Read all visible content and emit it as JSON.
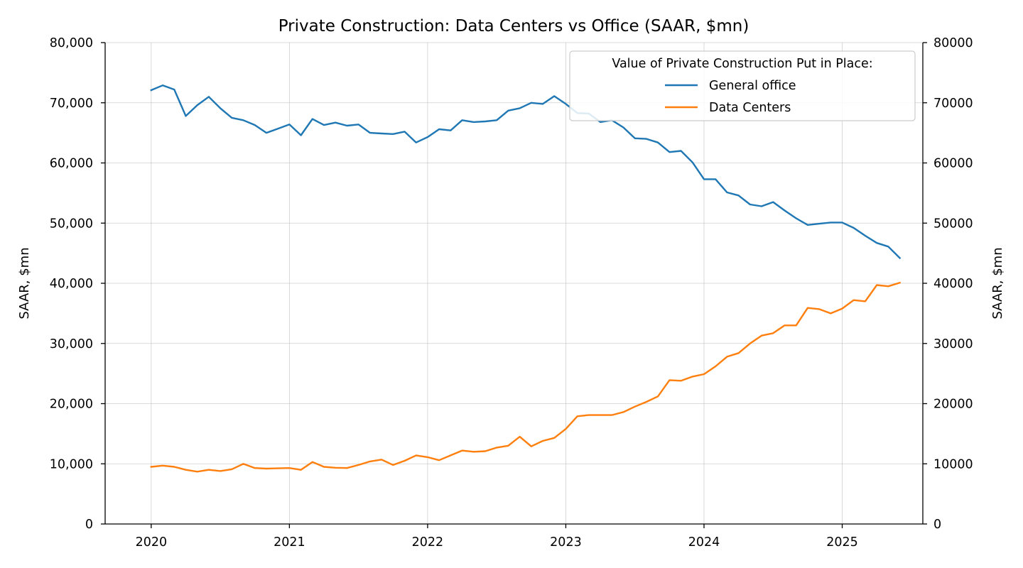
{
  "chart_data": {
    "type": "line",
    "title": "Private Construction: Data Centers vs Office (SAAR, $mn)",
    "ylabel_left": "SAAR, $mn",
    "ylabel_right": "SAAR, $mn",
    "xlabel": "",
    "ylim": [
      0,
      80000
    ],
    "xlim": [
      "2019-09",
      "2025-08"
    ],
    "yticks_left": [
      "0",
      "10,000",
      "20,000",
      "30,000",
      "40,000",
      "50,000",
      "60,000",
      "70,000",
      "80,000"
    ],
    "yticks_right": [
      "0",
      "10000",
      "20000",
      "30000",
      "40000",
      "50000",
      "60000",
      "70000",
      "80000"
    ],
    "xticks": [
      "2020",
      "2021",
      "2022",
      "2023",
      "2024",
      "2025"
    ],
    "grid": true,
    "legend": {
      "title": "Value of Private Construction Put in Place:",
      "placement": "upper right"
    },
    "x": [
      "2020-01",
      "2020-02",
      "2020-03",
      "2020-04",
      "2020-05",
      "2020-06",
      "2020-07",
      "2020-08",
      "2020-09",
      "2020-10",
      "2020-11",
      "2020-12",
      "2021-01",
      "2021-02",
      "2021-03",
      "2021-04",
      "2021-05",
      "2021-06",
      "2021-07",
      "2021-08",
      "2021-09",
      "2021-10",
      "2021-11",
      "2021-12",
      "2022-01",
      "2022-02",
      "2022-03",
      "2022-04",
      "2022-05",
      "2022-06",
      "2022-07",
      "2022-08",
      "2022-09",
      "2022-10",
      "2022-11",
      "2022-12",
      "2023-01",
      "2023-02",
      "2023-03",
      "2023-04",
      "2023-05",
      "2023-06",
      "2023-07",
      "2023-08",
      "2023-09",
      "2023-10",
      "2023-11",
      "2023-12",
      "2024-01",
      "2024-02",
      "2024-03",
      "2024-04",
      "2024-05",
      "2024-06",
      "2024-07",
      "2024-08",
      "2024-09",
      "2024-10",
      "2024-11",
      "2024-12",
      "2025-01",
      "2025-02",
      "2025-03",
      "2025-04",
      "2025-05",
      "2025-06"
    ],
    "series": [
      {
        "name": "General office",
        "color": "#1f77b4",
        "values": [
          72100,
          72900,
          72200,
          67800,
          69600,
          71000,
          69100,
          67500,
          67100,
          66300,
          65000,
          65700,
          66400,
          64600,
          67300,
          66300,
          66700,
          66200,
          66400,
          65000,
          64900,
          64800,
          65200,
          63400,
          64300,
          65600,
          65400,
          67100,
          66800,
          66900,
          67100,
          68700,
          69100,
          70000,
          69800,
          71100,
          69800,
          68300,
          68200,
          66800,
          67100,
          65900,
          64100,
          64000,
          63400,
          61800,
          62000,
          60100,
          57300,
          57300,
          55100,
          54600,
          53100,
          52800,
          53500,
          52100,
          50800,
          49700,
          49900,
          50100,
          50100,
          49200,
          47900,
          46700,
          46100,
          44200
        ]
      },
      {
        "name": "Data Centers",
        "color": "#ff7f0e",
        "values": [
          9500,
          9700,
          9500,
          9000,
          8700,
          9000,
          8800,
          9100,
          10000,
          9300,
          9200,
          9250,
          9300,
          9000,
          10300,
          9500,
          9350,
          9300,
          9800,
          10400,
          10700,
          9800,
          10500,
          11400,
          11100,
          10600,
          11400,
          12200,
          12000,
          12100,
          12700,
          13000,
          14500,
          12900,
          13800,
          14300,
          15800,
          17900,
          18100,
          18100,
          18100,
          18600,
          19500,
          20300,
          21200,
          23900,
          23800,
          24500,
          24900,
          26200,
          27800,
          28400,
          30000,
          31300,
          31700,
          33000,
          33000,
          35900,
          35700,
          35000,
          35800,
          37200,
          37000,
          39700,
          39500,
          40100
        ]
      }
    ]
  }
}
